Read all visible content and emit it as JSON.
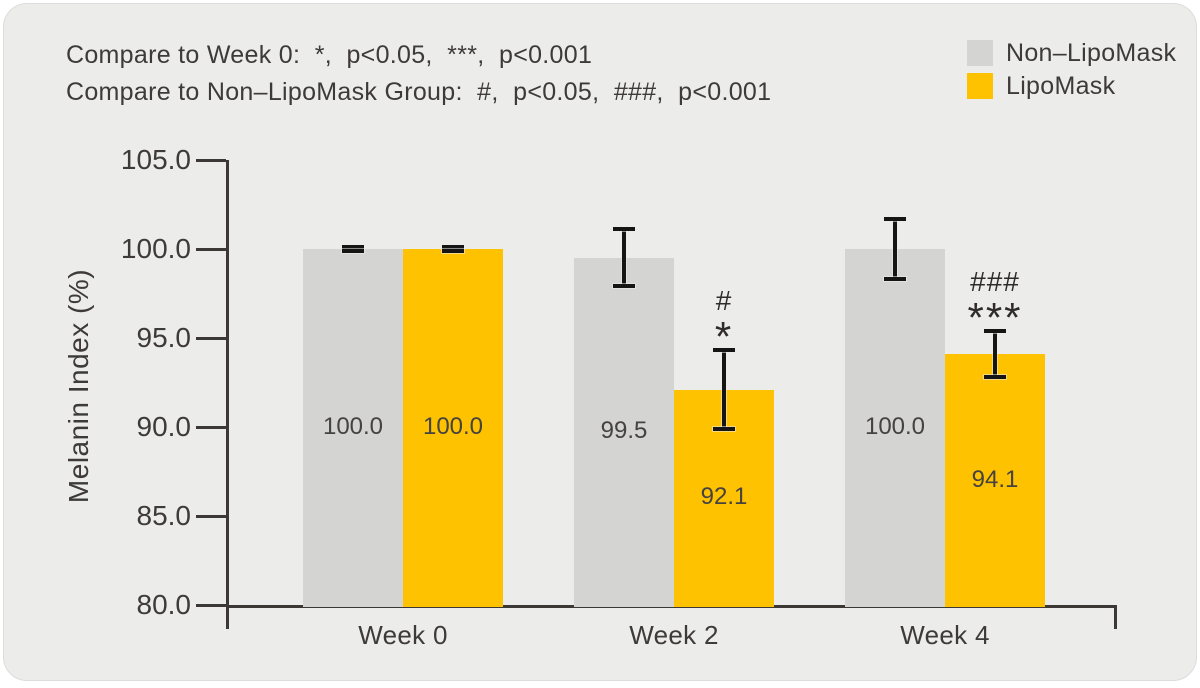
{
  "annotation": {
    "line1": "Compare to Week 0:  *,  p<0.05,  ***,  p<0.001",
    "line2": "Compare to Non–LipoMask Group:  #,  p<0.05,  ###,  p<0.001"
  },
  "chart_data": {
    "type": "bar",
    "title": "",
    "ylabel": "Melanin Index (%)",
    "xlabel": "",
    "ylim": [
      80.0,
      105.0
    ],
    "ytick_step": 5.0,
    "ytick_decimals": 1,
    "grid": false,
    "legend_position": "top-right",
    "categories": [
      "Week 0",
      "Week 2",
      "Week 4"
    ],
    "series": [
      {
        "name": "Non–LipoMask",
        "color": "#D4D4D3",
        "values": [
          100.0,
          99.5,
          100.0
        ],
        "value_labels": [
          "100.0",
          "99.5",
          "100.0"
        ],
        "errors": [
          0.12,
          1.6,
          1.7
        ],
        "sig": [
          [],
          [],
          []
        ]
      },
      {
        "name": "LipoMask",
        "color": "#FEC200",
        "values": [
          100.0,
          92.1,
          94.1
        ],
        "value_labels": [
          "100.0",
          "92.1",
          "94.1"
        ],
        "errors": [
          0.12,
          2.2,
          1.3
        ],
        "sig": [
          [],
          [
            "#",
            "*"
          ],
          [
            "###",
            "***"
          ]
        ]
      }
    ]
  },
  "colors": {
    "background": "#ECECEB",
    "axis": "#3B3835",
    "error_bar": "#151515",
    "text": "#3D3A37"
  }
}
